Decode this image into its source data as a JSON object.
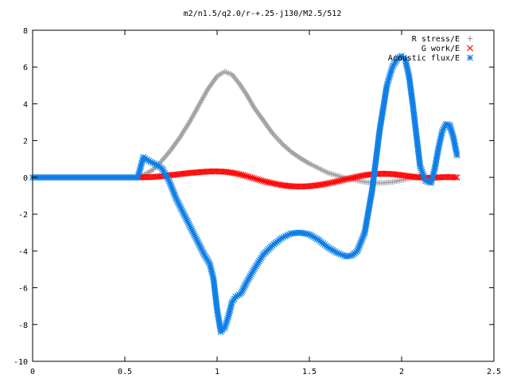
{
  "chart_data": {
    "type": "scatter",
    "title": "m2/n1.5/q2.0/r-+.25-j130/M2.5/512",
    "xlabel": "",
    "ylabel": "",
    "xlim": [
      0,
      2.5
    ],
    "ylim": [
      -10,
      8
    ],
    "xticks": [
      "0",
      "0.5",
      "1",
      "1.5",
      "2",
      "2.5"
    ],
    "yticks": [
      "8",
      "6",
      "4",
      "2",
      "0",
      "-2",
      "-4",
      "-6",
      "-8",
      "-10"
    ],
    "grid": false,
    "legend_position": "top-right",
    "series": [
      {
        "name": "R stress/E",
        "marker": "plus",
        "color": "#a0a0a0",
        "x": [
          0.58,
          0.65,
          0.7,
          0.75,
          0.8,
          0.85,
          0.9,
          0.95,
          1.0,
          1.04,
          1.08,
          1.12,
          1.16,
          1.2,
          1.25,
          1.3,
          1.35,
          1.4,
          1.45,
          1.5,
          1.55,
          1.6,
          1.65,
          1.7,
          1.75,
          1.8,
          1.85,
          1.9,
          1.95,
          2.0,
          2.05,
          2.1
        ],
        "y": [
          0.0,
          0.4,
          0.9,
          1.5,
          2.2,
          3.0,
          3.9,
          4.8,
          5.5,
          5.75,
          5.6,
          5.1,
          4.5,
          3.8,
          3.1,
          2.4,
          1.85,
          1.4,
          1.05,
          0.75,
          0.5,
          0.25,
          0.1,
          -0.05,
          -0.15,
          -0.25,
          -0.3,
          -0.3,
          -0.25,
          -0.15,
          -0.05,
          0.0
        ]
      },
      {
        "name": "G work/E",
        "marker": "cross",
        "color": "#ff0000",
        "x": [
          0.58,
          0.65,
          0.7,
          0.75,
          0.8,
          0.85,
          0.9,
          0.95,
          1.0,
          1.05,
          1.1,
          1.15,
          1.2,
          1.25,
          1.3,
          1.35,
          1.4,
          1.45,
          1.5,
          1.55,
          1.6,
          1.65,
          1.7,
          1.75,
          1.8,
          1.85,
          1.9,
          1.95,
          2.0,
          2.05,
          2.1,
          2.15,
          2.2,
          2.25,
          2.3
        ],
        "y": [
          0.0,
          0.02,
          0.06,
          0.12,
          0.18,
          0.24,
          0.28,
          0.32,
          0.33,
          0.3,
          0.22,
          0.1,
          -0.05,
          -0.2,
          -0.32,
          -0.42,
          -0.48,
          -0.5,
          -0.48,
          -0.42,
          -0.33,
          -0.22,
          -0.1,
          0.02,
          0.12,
          0.18,
          0.2,
          0.18,
          0.12,
          0.05,
          0.0,
          -0.02,
          0.0,
          0.02,
          0.0
        ]
      },
      {
        "name": "Acoustic flux/E",
        "marker": "star",
        "color": "#0f7fe6",
        "x": [
          0.0,
          0.1,
          0.2,
          0.3,
          0.4,
          0.5,
          0.57,
          0.6,
          0.63,
          0.66,
          0.7,
          0.74,
          0.78,
          0.82,
          0.86,
          0.9,
          0.93,
          0.96,
          0.98,
          1.0,
          1.02,
          1.04,
          1.06,
          1.08,
          1.1,
          1.13,
          1.16,
          1.2,
          1.25,
          1.3,
          1.35,
          1.4,
          1.45,
          1.5,
          1.55,
          1.6,
          1.65,
          1.7,
          1.73,
          1.76,
          1.8,
          1.84,
          1.88,
          1.92,
          1.95,
          1.98,
          2.0,
          2.02,
          2.04,
          2.06,
          2.08,
          2.1,
          2.13,
          2.16,
          2.18,
          2.2,
          2.22,
          2.24,
          2.26,
          2.28,
          2.3
        ],
        "y": [
          0.0,
          0.0,
          0.0,
          0.0,
          0.0,
          0.0,
          0.0,
          1.1,
          0.9,
          0.75,
          0.5,
          -0.2,
          -1.2,
          -2.0,
          -2.8,
          -3.6,
          -4.2,
          -4.7,
          -5.5,
          -7.2,
          -8.4,
          -8.2,
          -7.6,
          -6.8,
          -6.5,
          -6.3,
          -5.7,
          -5.0,
          -4.2,
          -3.7,
          -3.3,
          -3.05,
          -3.0,
          -3.1,
          -3.4,
          -3.8,
          -4.1,
          -4.3,
          -4.25,
          -4.0,
          -3.0,
          -0.7,
          2.5,
          5.0,
          6.0,
          6.5,
          6.6,
          6.4,
          5.5,
          4.0,
          2.3,
          0.6,
          -0.2,
          -0.3,
          0.5,
          1.6,
          2.5,
          2.9,
          2.85,
          2.2,
          1.2
        ]
      }
    ]
  }
}
